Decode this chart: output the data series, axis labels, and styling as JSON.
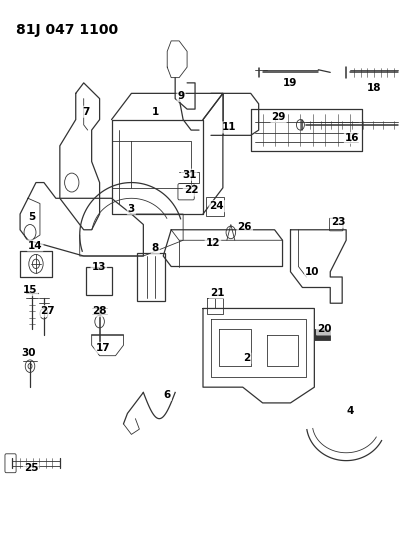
{
  "title": "81J 047 1100",
  "bg_color": "#ffffff",
  "line_color": "#333333",
  "text_color": "#000000",
  "title_fontsize": 10,
  "label_fontsize": 7.5,
  "figsize": [
    4.06,
    5.33
  ],
  "dpi": 100
}
